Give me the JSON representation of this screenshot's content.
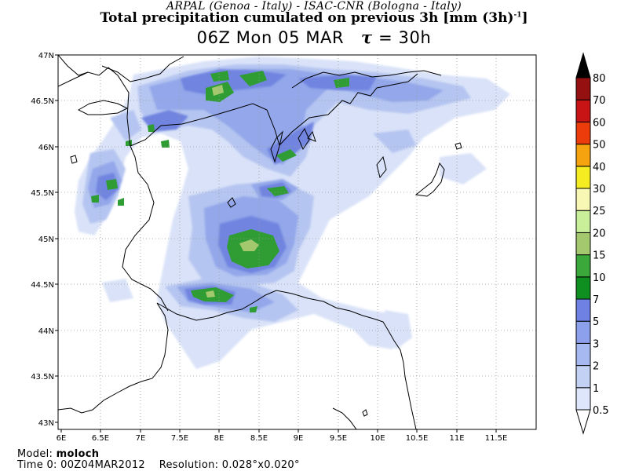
{
  "header": {
    "credit": "ARPAL (Genoa - Italy)  -  ISAC-CNR (Bologna - Italy)",
    "title_main": "Total precipitation cumulated on previous 3h [mm (3h)",
    "title_exp": "-1",
    "title_end": "]",
    "valid_time": "06Z Mon 05 MAR",
    "tau_symbol": "τ",
    "lead_time": "= 30h"
  },
  "map": {
    "lat_labels": [
      "47N",
      "46.5N",
      "46N",
      "45.5N",
      "45N",
      "44.5N",
      "44N",
      "43.5N",
      "43N"
    ],
    "lon_labels": [
      "6E",
      "6.5E",
      "7E",
      "7.5E",
      "8E",
      "8.5E",
      "9E",
      "9.5E",
      "10E",
      "10.5E",
      "11E",
      "11.5E"
    ],
    "lat_range": [
      42.95,
      47.0
    ],
    "lon_range": [
      5.95,
      12.0
    ],
    "grid": "dotted"
  },
  "colorbar": {
    "levels": [
      "0.5",
      "1",
      "2",
      "3",
      "5",
      "7",
      "10",
      "15",
      "20",
      "25",
      "30",
      "40",
      "50",
      "60",
      "70",
      "80"
    ],
    "colors": [
      "#dde6fa",
      "#c3d1f5",
      "#a6b9f0",
      "#8ca0eb",
      "#6f82e3",
      "#0f8f1f",
      "#3aa83a",
      "#a4c86e",
      "#c9ef9a",
      "#f9f7b4",
      "#f5ec22",
      "#f5a40f",
      "#ed3c0c",
      "#c81414",
      "#951010",
      "#6d0d0d",
      "#000000"
    ]
  },
  "precip_colors": [
    "#d9e2f8",
    "#b5c5f1",
    "#93a7ea",
    "#7184e0",
    "#2f9d34",
    "#a4c86e"
  ],
  "footer": {
    "model_label": "Model:",
    "model_name": "moloch",
    "time0_label": "Time 0:",
    "time0_value": "00Z04MAR2012",
    "resolution_label": "Resolution:",
    "resolution_value": "0.028°x0.020°"
  }
}
